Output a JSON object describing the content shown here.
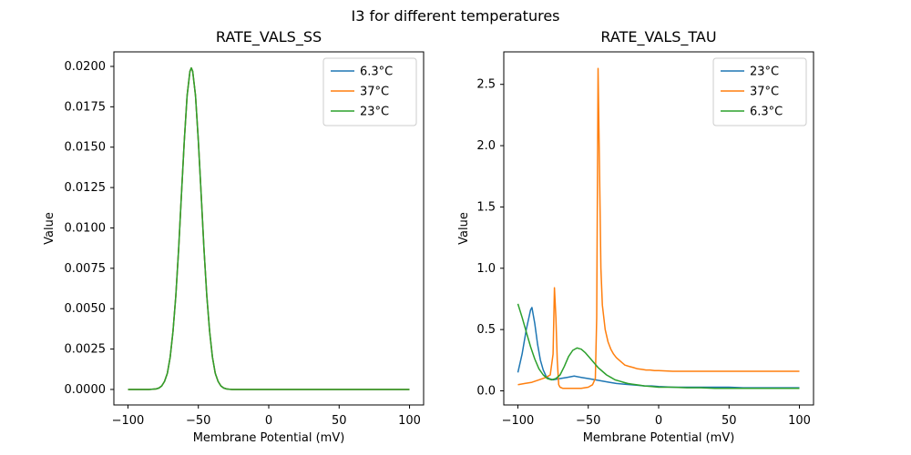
{
  "figure": {
    "title": "I3 for different temperatures",
    "background": "#ffffff"
  },
  "colors": {
    "blue": "#1f77b4",
    "orange": "#ff7f0e",
    "green": "#2ca02c",
    "axis": "#000000",
    "legend_edge": "#cccccc"
  },
  "chart_data": [
    {
      "type": "line",
      "title": "RATE_VALS_SS",
      "xlabel": "Membrane Potential (mV)",
      "ylabel": "Value",
      "xlim": [
        -110,
        110
      ],
      "ylim": [
        -0.00096,
        0.0209
      ],
      "xticks": [
        -100,
        -50,
        0,
        50,
        100
      ],
      "yticks": [
        0.0,
        0.0025,
        0.005,
        0.0075,
        0.01,
        0.0125,
        0.015,
        0.0175,
        0.02
      ],
      "xtick_decimals": 0,
      "ytick_decimals": 4,
      "grid": false,
      "legend_position": "upper right",
      "x": [
        -100,
        -95,
        -90,
        -85,
        -80,
        -78,
        -76,
        -74,
        -72,
        -70,
        -68,
        -66,
        -64,
        -62,
        -60,
        -58,
        -56,
        -55,
        -54,
        -52,
        -50,
        -48,
        -46,
        -44,
        -42,
        -40,
        -38,
        -36,
        -34,
        -32,
        -30,
        -28,
        -26,
        -24,
        -22,
        -20,
        -15,
        -10,
        -5,
        0,
        10,
        20,
        30,
        40,
        50,
        60,
        70,
        80,
        90,
        100
      ],
      "series": [
        {
          "name": "6.3°C",
          "color": "#1f77b4",
          "y": [
            0,
            0,
            0,
            0,
            3e-05,
            9e-05,
            0.00022,
            0.0005,
            0.001,
            0.002,
            0.0036,
            0.0058,
            0.0087,
            0.0121,
            0.0154,
            0.0182,
            0.0197,
            0.0199,
            0.0197,
            0.0182,
            0.0154,
            0.0121,
            0.0087,
            0.0058,
            0.0036,
            0.002,
            0.001,
            0.0005,
            0.00022,
            9e-05,
            3e-05,
            1e-05,
            0,
            0,
            0,
            0,
            0,
            0,
            0,
            0,
            0,
            0,
            0,
            0,
            0,
            0,
            0,
            0,
            0,
            0
          ]
        },
        {
          "name": "37°C",
          "color": "#ff7f0e",
          "y": [
            0,
            0,
            0,
            0,
            3e-05,
            9e-05,
            0.00022,
            0.0005,
            0.001,
            0.002,
            0.0036,
            0.0058,
            0.0087,
            0.0121,
            0.0154,
            0.0182,
            0.0197,
            0.0199,
            0.0197,
            0.0182,
            0.0154,
            0.0121,
            0.0087,
            0.0058,
            0.0036,
            0.002,
            0.001,
            0.0005,
            0.00022,
            9e-05,
            3e-05,
            1e-05,
            0,
            0,
            0,
            0,
            0,
            0,
            0,
            0,
            0,
            0,
            0,
            0,
            0,
            0,
            0,
            0,
            0,
            0
          ]
        },
        {
          "name": "23°C",
          "color": "#2ca02c",
          "y": [
            0,
            0,
            0,
            0,
            3e-05,
            9e-05,
            0.00022,
            0.0005,
            0.001,
            0.002,
            0.0036,
            0.0058,
            0.0087,
            0.0121,
            0.0154,
            0.0182,
            0.0197,
            0.0199,
            0.0197,
            0.0182,
            0.0154,
            0.0121,
            0.0087,
            0.0058,
            0.0036,
            0.002,
            0.001,
            0.0005,
            0.00022,
            9e-05,
            3e-05,
            1e-05,
            0,
            0,
            0,
            0,
            0,
            0,
            0,
            0,
            0,
            0,
            0,
            0,
            0,
            0,
            0,
            0,
            0,
            0
          ]
        }
      ]
    },
    {
      "type": "line",
      "title": "RATE_VALS_TAU",
      "xlabel": "Membrane Potential (mV)",
      "ylabel": "Value",
      "xlim": [
        -110,
        110
      ],
      "ylim": [
        -0.115,
        2.765
      ],
      "xticks": [
        -100,
        -50,
        0,
        50,
        100
      ],
      "yticks": [
        0.0,
        0.5,
        1.0,
        1.5,
        2.0,
        2.5
      ],
      "xtick_decimals": 0,
      "ytick_decimals": 1,
      "grid": false,
      "legend_position": "upper right",
      "series": [
        {
          "name": "23°C",
          "color": "#1f77b4",
          "x": [
            -100,
            -97,
            -94,
            -91,
            -90,
            -88,
            -86,
            -84,
            -82,
            -80,
            -78,
            -75,
            -70,
            -65,
            -60,
            -55,
            -50,
            -45,
            -40,
            -35,
            -30,
            -25,
            -20,
            -15,
            -10,
            -5,
            0,
            10,
            20,
            30,
            40,
            50,
            60,
            70,
            80,
            90,
            100
          ],
          "y": [
            0.15,
            0.3,
            0.5,
            0.66,
            0.68,
            0.55,
            0.38,
            0.25,
            0.17,
            0.12,
            0.1,
            0.09,
            0.1,
            0.11,
            0.12,
            0.11,
            0.1,
            0.09,
            0.08,
            0.07,
            0.06,
            0.055,
            0.05,
            0.045,
            0.04,
            0.04,
            0.035,
            0.03,
            0.03,
            0.03,
            0.03,
            0.03,
            0.025,
            0.025,
            0.025,
            0.025,
            0.025
          ]
        },
        {
          "name": "37°C",
          "color": "#ff7f0e",
          "x": [
            -100,
            -95,
            -90,
            -85,
            -80,
            -77,
            -75,
            -74,
            -73,
            -72,
            -71,
            -70,
            -68,
            -65,
            -60,
            -55,
            -50,
            -47,
            -45,
            -44,
            -43,
            -42,
            -41,
            -40,
            -38,
            -36,
            -34,
            -32,
            -30,
            -27,
            -24,
            -21,
            -18,
            -15,
            -12,
            -9,
            -6,
            -3,
            0,
            10,
            20,
            30,
            40,
            50,
            60,
            70,
            80,
            90,
            100
          ],
          "y": [
            0.05,
            0.06,
            0.07,
            0.09,
            0.11,
            0.13,
            0.3,
            0.84,
            0.6,
            0.25,
            0.05,
            0.03,
            0.02,
            0.02,
            0.02,
            0.02,
            0.03,
            0.05,
            0.1,
            0.6,
            2.63,
            1.8,
            1.0,
            0.7,
            0.5,
            0.4,
            0.34,
            0.3,
            0.27,
            0.24,
            0.21,
            0.2,
            0.19,
            0.18,
            0.175,
            0.17,
            0.17,
            0.165,
            0.165,
            0.16,
            0.16,
            0.16,
            0.16,
            0.16,
            0.16,
            0.16,
            0.16,
            0.16,
            0.16
          ]
        },
        {
          "name": "6.3°C",
          "color": "#2ca02c",
          "x": [
            -100,
            -97,
            -94,
            -91,
            -88,
            -85,
            -82,
            -79,
            -76,
            -73,
            -70,
            -67,
            -64,
            -61,
            -58,
            -55,
            -52,
            -49,
            -46,
            -43,
            -40,
            -37,
            -34,
            -31,
            -28,
            -25,
            -22,
            -19,
            -16,
            -13,
            -10,
            -5,
            0,
            10,
            20,
            30,
            40,
            50,
            60,
            70,
            80,
            90,
            100
          ],
          "y": [
            0.71,
            0.6,
            0.48,
            0.36,
            0.26,
            0.18,
            0.13,
            0.1,
            0.09,
            0.1,
            0.13,
            0.2,
            0.28,
            0.33,
            0.35,
            0.34,
            0.31,
            0.27,
            0.23,
            0.19,
            0.16,
            0.13,
            0.11,
            0.09,
            0.08,
            0.07,
            0.06,
            0.055,
            0.05,
            0.045,
            0.04,
            0.035,
            0.03,
            0.03,
            0.025,
            0.025,
            0.02,
            0.02,
            0.02,
            0.02,
            0.02,
            0.02,
            0.02
          ]
        }
      ]
    }
  ]
}
